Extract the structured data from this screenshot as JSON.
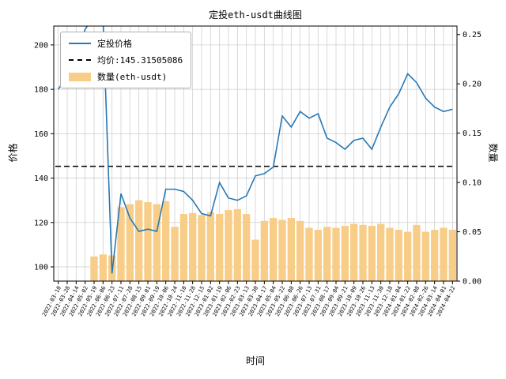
{
  "chart_data": {
    "type": "line+bar",
    "title": "定投eth-usdt曲线图",
    "xlabel": "时间",
    "ylabel_left": "价格",
    "ylabel_right": "数量",
    "average_price": 145.31505086,
    "grid": true,
    "legend_position": "upper left",
    "left_ticks": [
      100,
      120,
      140,
      160,
      180,
      200
    ],
    "right_ticks": [
      0,
      0.05,
      0.1,
      0.15,
      0.2,
      0.25
    ],
    "left_range": [
      93.6,
      208.5
    ],
    "right_range": [
      0,
      0.2586
    ],
    "x": [
      "2022-03-10",
      "2022-03-28",
      "2022-04-14",
      "2022-05-02",
      "2022-05-19",
      "2022-06-06",
      "2022-06-23",
      "2022-07-11",
      "2022-07-28",
      "2022-08-15",
      "2022-09-01",
      "2022-09-19",
      "2022-10-06",
      "2022-10-24",
      "2022-11-10",
      "2022-11-28",
      "2022-12-15",
      "2023-01-02",
      "2023-01-19",
      "2023-02-06",
      "2023-02-23",
      "2023-03-13",
      "2023-03-30",
      "2023-04-17",
      "2023-05-04",
      "2023-05-22",
      "2023-06-08",
      "2023-06-26",
      "2023-07-13",
      "2023-07-31",
      "2023-08-17",
      "2023-09-04",
      "2023-09-21",
      "2023-10-09",
      "2023-10-26",
      "2023-11-13",
      "2023-11-30",
      "2023-12-18",
      "2024-01-04",
      "2024-01-22",
      "2024-02-08",
      "2024-02-26",
      "2024-03-14",
      "2024-04-01",
      "2024-04-22"
    ],
    "series": [
      {
        "name": "定投价格",
        "type": "line",
        "axis": "left",
        "color": "#2878b5",
        "values": [
          180,
          186,
          196,
          207,
          213,
          212,
          97,
          133,
          122,
          116,
          117,
          116,
          135,
          135,
          134,
          130,
          124,
          123,
          138,
          131,
          130,
          132,
          141,
          142,
          145,
          168,
          163,
          170,
          167,
          169,
          158,
          156,
          153,
          157,
          158,
          153,
          163,
          172,
          178,
          187,
          183,
          176,
          172,
          170,
          171
        ]
      },
      {
        "name": "均价:145.31505086",
        "type": "hline",
        "axis": "left",
        "color": "#000000",
        "line_style": "dashed",
        "value": 145.31505086
      },
      {
        "name": "数量(eth-usdt)",
        "type": "bar",
        "axis": "right",
        "color": "#f8cd87",
        "values": [
          0,
          0,
          0,
          0,
          0.025,
          0.027,
          0.026,
          0.075,
          0.078,
          0.082,
          0.08,
          0.078,
          0.081,
          0.055,
          0.068,
          0.069,
          0.067,
          0.07,
          0.068,
          0.072,
          0.073,
          0.068,
          0.042,
          0.061,
          0.064,
          0.062,
          0.064,
          0.061,
          0.054,
          0.052,
          0.055,
          0.054,
          0.056,
          0.058,
          0.057,
          0.056,
          0.058,
          0.054,
          0.052,
          0.05,
          0.057,
          0.05,
          0.052,
          0.054,
          0.052
        ]
      }
    ]
  }
}
